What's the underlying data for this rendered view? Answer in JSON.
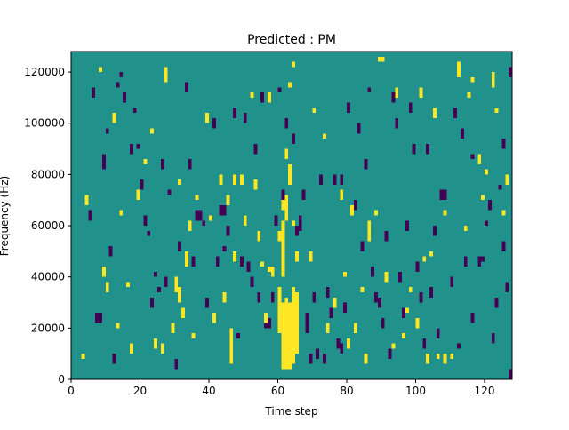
{
  "colors": {
    "background": "#21918c",
    "low": "#440154",
    "high": "#fde725",
    "axis": "#000000",
    "figure": "#ffffff"
  },
  "chart_data": {
    "type": "heatmap",
    "title": "Predicted : PM",
    "xlabel": "Time step",
    "ylabel": "Frequency (Hz)",
    "xlim": [
      0,
      128
    ],
    "ylim": [
      0,
      128000
    ],
    "xticks": [
      0,
      20,
      40,
      60,
      80,
      100,
      120
    ],
    "xtick_labels": [
      "0",
      "20",
      "40",
      "60",
      "80",
      "100",
      "120"
    ],
    "yticks": [
      0,
      20000,
      40000,
      60000,
      80000,
      100000,
      120000
    ],
    "ytick_labels": [
      "0",
      "20000",
      "40000",
      "60000",
      "80000",
      "100000",
      "120000"
    ],
    "colormap": "viridis",
    "value_levels": [
      -1,
      0,
      1
    ],
    "background_value": 0,
    "cells": {
      "note": "",
      "bin_hz": 1000,
      "high": [
        [
          61,
          4000,
          30000
        ],
        [
          62,
          4000,
          32000
        ],
        [
          63,
          4000,
          30000
        ],
        [
          64,
          6000,
          36000
        ],
        [
          65,
          10000,
          34000
        ],
        [
          60,
          18000,
          36000
        ],
        [
          61,
          40000,
          62000
        ],
        [
          62,
          62000,
          72000
        ],
        [
          63,
          76000,
          84000
        ],
        [
          61,
          66000,
          70000
        ],
        [
          62,
          86000,
          90000
        ],
        [
          60,
          54000,
          58000
        ],
        [
          65,
          46000,
          50000
        ],
        [
          64,
          60000,
          62000
        ],
        [
          3,
          8000,
          10000
        ],
        [
          13,
          20000,
          22000
        ],
        [
          17,
          10000,
          14000
        ],
        [
          16,
          36000,
          38000
        ],
        [
          14,
          64000,
          66000
        ],
        [
          8,
          120000,
          122000
        ],
        [
          12,
          100000,
          104000
        ],
        [
          26,
          10000,
          14000
        ],
        [
          29,
          18000,
          22000
        ],
        [
          30,
          34000,
          40000
        ],
        [
          31,
          30000,
          36000
        ],
        [
          32,
          24000,
          28000
        ],
        [
          33,
          44000,
          50000
        ],
        [
          35,
          16000,
          18000
        ],
        [
          34,
          58000,
          62000
        ],
        [
          36,
          70000,
          72000
        ],
        [
          41,
          22000,
          26000
        ],
        [
          44,
          30000,
          34000
        ],
        [
          46,
          6000,
          20000
        ],
        [
          47,
          46000,
          50000
        ],
        [
          50,
          60000,
          64000
        ],
        [
          49,
          76000,
          80000
        ],
        [
          53,
          74000,
          78000
        ],
        [
          54,
          54000,
          58000
        ],
        [
          55,
          44000,
          46000
        ],
        [
          56,
          22000,
          26000
        ],
        [
          24,
          12000,
          16000
        ],
        [
          27,
          116000,
          122000
        ],
        [
          40,
          62000,
          64000
        ],
        [
          45,
          68000,
          72000
        ],
        [
          52,
          110000,
          112000
        ],
        [
          57,
          108000,
          112000
        ],
        [
          63,
          114000,
          116000
        ],
        [
          64,
          122000,
          124000
        ],
        [
          70,
          104000,
          106000
        ],
        [
          73,
          94000,
          96000
        ],
        [
          78,
          70000,
          74000
        ],
        [
          82,
          18000,
          22000
        ],
        [
          84,
          34000,
          36000
        ],
        [
          86,
          54000,
          62000
        ],
        [
          88,
          64000,
          66000
        ],
        [
          91,
          38000,
          42000
        ],
        [
          93,
          12000,
          14000
        ],
        [
          96,
          16000,
          18000
        ],
        [
          98,
          34000,
          36000
        ],
        [
          100,
          20000,
          24000
        ],
        [
          102,
          46000,
          48000
        ],
        [
          104,
          48000,
          50000
        ],
        [
          106,
          8000,
          10000
        ],
        [
          108,
          64000,
          66000
        ],
        [
          110,
          8000,
          10000
        ],
        [
          112,
          118000,
          124000
        ],
        [
          114,
          58000,
          60000
        ],
        [
          116,
          116000,
          118000
        ],
        [
          119,
          70000,
          72000
        ],
        [
          123,
          104000,
          106000
        ],
        [
          125,
          64000,
          66000
        ],
        [
          4,
          68000,
          72000
        ],
        [
          9,
          40000,
          44000
        ],
        [
          10,
          34000,
          38000
        ],
        [
          19,
          70000,
          74000
        ],
        [
          21,
          84000,
          86000
        ],
        [
          23,
          96000,
          98000
        ],
        [
          39,
          100000,
          104000
        ],
        [
          43,
          76000,
          80000
        ],
        [
          69,
          46000,
          50000
        ],
        [
          74,
          18000,
          22000
        ],
        [
          76,
          28000,
          32000
        ],
        [
          79,
          40000,
          42000
        ],
        [
          80,
          12000,
          16000
        ],
        [
          81,
          64000,
          68000
        ],
        [
          85,
          6000,
          10000
        ],
        [
          89,
          124000,
          126000
        ],
        [
          90,
          124000,
          126000
        ],
        [
          94,
          110000,
          114000
        ],
        [
          97,
          26000,
          28000
        ],
        [
          101,
          110000,
          114000
        ],
        [
          103,
          6000,
          10000
        ],
        [
          105,
          102000,
          106000
        ],
        [
          108,
          6000,
          10000
        ],
        [
          115,
          110000,
          112000
        ],
        [
          118,
          84000,
          88000
        ],
        [
          120,
          80000,
          82000
        ],
        [
          122,
          114000,
          120000
        ],
        [
          126,
          76000,
          80000
        ],
        [
          31,
          76000,
          78000
        ],
        [
          47,
          76000,
          80000
        ],
        [
          57,
          42000,
          44000
        ],
        [
          58,
          40000,
          44000
        ]
      ],
      "low": [
        [
          7,
          22000,
          26000
        ],
        [
          8,
          22000,
          26000
        ],
        [
          12,
          6000,
          10000
        ],
        [
          9,
          82000,
          88000
        ],
        [
          10,
          96000,
          98000
        ],
        [
          13,
          114000,
          116000
        ],
        [
          14,
          118000,
          120000
        ],
        [
          18,
          104000,
          106000
        ],
        [
          19,
          90000,
          92000
        ],
        [
          20,
          74000,
          78000
        ],
        [
          22,
          56000,
          58000
        ],
        [
          23,
          28000,
          32000
        ],
        [
          24,
          40000,
          42000
        ],
        [
          25,
          34000,
          36000
        ],
        [
          27,
          36000,
          40000
        ],
        [
          28,
          72000,
          74000
        ],
        [
          30,
          4000,
          8000
        ],
        [
          31,
          50000,
          54000
        ],
        [
          34,
          82000,
          86000
        ],
        [
          36,
          62000,
          66000
        ],
        [
          38,
          60000,
          62000
        ],
        [
          39,
          28000,
          32000
        ],
        [
          42,
          44000,
          48000
        ],
        [
          43,
          64000,
          68000
        ],
        [
          44,
          50000,
          52000
        ],
        [
          48,
          16000,
          18000
        ],
        [
          49,
          44000,
          48000
        ],
        [
          52,
          36000,
          40000
        ],
        [
          54,
          30000,
          34000
        ],
        [
          56,
          20000,
          24000
        ],
        [
          57,
          20000,
          24000
        ],
        [
          59,
          60000,
          64000
        ],
        [
          60,
          112000,
          114000
        ],
        [
          62,
          98000,
          102000
        ],
        [
          64,
          92000,
          96000
        ],
        [
          66,
          58000,
          64000
        ],
        [
          67,
          70000,
          74000
        ],
        [
          68,
          18000,
          26000
        ],
        [
          69,
          6000,
          10000
        ],
        [
          70,
          30000,
          34000
        ],
        [
          72,
          76000,
          80000
        ],
        [
          73,
          6000,
          10000
        ],
        [
          74,
          32000,
          36000
        ],
        [
          75,
          24000,
          28000
        ],
        [
          76,
          76000,
          80000
        ],
        [
          77,
          12000,
          16000
        ],
        [
          78,
          10000,
          14000
        ],
        [
          79,
          26000,
          30000
        ],
        [
          80,
          104000,
          108000
        ],
        [
          82,
          66000,
          70000
        ],
        [
          84,
          50000,
          54000
        ],
        [
          85,
          82000,
          86000
        ],
        [
          86,
          112000,
          114000
        ],
        [
          87,
          40000,
          44000
        ],
        [
          88,
          30000,
          34000
        ],
        [
          89,
          28000,
          32000
        ],
        [
          90,
          20000,
          24000
        ],
        [
          91,
          54000,
          58000
        ],
        [
          92,
          8000,
          12000
        ],
        [
          93,
          108000,
          112000
        ],
        [
          94,
          98000,
          102000
        ],
        [
          95,
          38000,
          42000
        ],
        [
          96,
          24000,
          28000
        ],
        [
          97,
          58000,
          62000
        ],
        [
          98,
          104000,
          108000
        ],
        [
          99,
          88000,
          92000
        ],
        [
          100,
          42000,
          46000
        ],
        [
          101,
          30000,
          34000
        ],
        [
          102,
          12000,
          16000
        ],
        [
          103,
          88000,
          92000
        ],
        [
          104,
          32000,
          36000
        ],
        [
          106,
          16000,
          20000
        ],
        [
          108,
          70000,
          74000
        ],
        [
          110,
          36000,
          40000
        ],
        [
          112,
          12000,
          14000
        ],
        [
          114,
          44000,
          48000
        ],
        [
          116,
          86000,
          88000
        ],
        [
          118,
          44000,
          48000
        ],
        [
          119,
          46000,
          48000
        ],
        [
          120,
          60000,
          62000
        ],
        [
          122,
          14000,
          18000
        ],
        [
          124,
          74000,
          76000
        ],
        [
          126,
          34000,
          38000
        ],
        [
          127,
          0,
          4000
        ],
        [
          125,
          90000,
          94000
        ],
        [
          116,
          22000,
          26000
        ],
        [
          111,
          102000,
          106000
        ],
        [
          107,
          70000,
          74000
        ],
        [
          83,
          96000,
          100000
        ],
        [
          78,
          76000,
          80000
        ],
        [
          71,
          8000,
          12000
        ],
        [
          65,
          56000,
          60000
        ],
        [
          50,
          100000,
          104000
        ],
        [
          47,
          102000,
          106000
        ],
        [
          44,
          64000,
          68000
        ],
        [
          37,
          62000,
          66000
        ],
        [
          29,
          18000,
          22000
        ],
        [
          26,
          82000,
          86000
        ],
        [
          33,
          112000,
          116000
        ],
        [
          41,
          98000,
          102000
        ],
        [
          45,
          56000,
          60000
        ],
        [
          58,
          30000,
          34000
        ],
        [
          6,
          110000,
          114000
        ],
        [
          15,
          108000,
          112000
        ],
        [
          17,
          88000,
          92000
        ],
        [
          5,
          62000,
          66000
        ],
        [
          11,
          48000,
          52000
        ],
        [
          21,
          60000,
          64000
        ],
        [
          35,
          44000,
          48000
        ],
        [
          51,
          42000,
          46000
        ],
        [
          53,
          88000,
          92000
        ],
        [
          55,
          108000,
          112000
        ],
        [
          61,
          70000,
          74000
        ],
        [
          105,
          56000,
          60000
        ],
        [
          113,
          94000,
          98000
        ],
        [
          121,
          66000,
          70000
        ],
        [
          123,
          28000,
          32000
        ],
        [
          125,
          50000,
          54000
        ],
        [
          127,
          118000,
          122000
        ]
      ]
    }
  }
}
